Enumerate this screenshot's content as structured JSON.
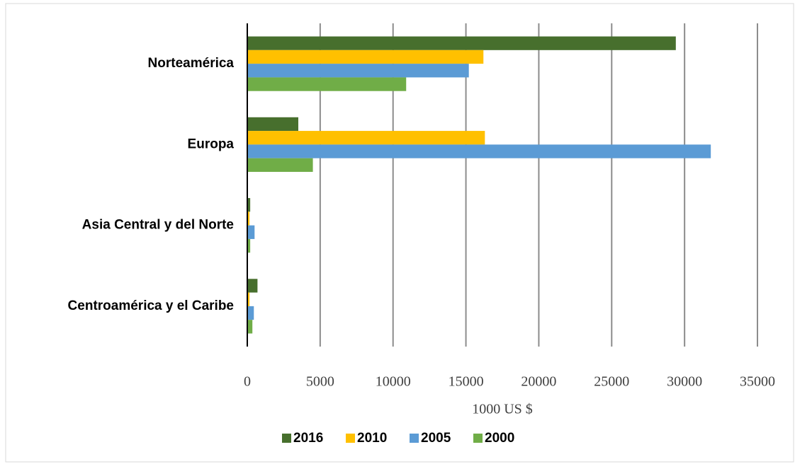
{
  "chart_data": {
    "type": "bar",
    "orientation": "horizontal",
    "x_label": "1000 US $",
    "categories": [
      "Norteamérica",
      "Europa",
      "Asia Central y del Norte",
      "Centroamérica y el Caribe"
    ],
    "series": [
      {
        "name": "2016",
        "color": "#476f2d",
        "values": [
          29400,
          3500,
          200,
          700
        ]
      },
      {
        "name": "2010",
        "color": "#ffc000",
        "values": [
          16200,
          16300,
          150,
          150
        ]
      },
      {
        "name": "2005",
        "color": "#5b9bd5",
        "values": [
          15200,
          31800,
          500,
          450
        ]
      },
      {
        "name": "2000",
        "color": "#70ad47",
        "values": [
          10900,
          4500,
          200,
          350
        ]
      }
    ],
    "xlim": [
      0,
      35000
    ],
    "xticks": [
      0,
      5000,
      10000,
      15000,
      20000,
      25000,
      30000,
      35000
    ],
    "grid": true,
    "legend": "bottom"
  }
}
